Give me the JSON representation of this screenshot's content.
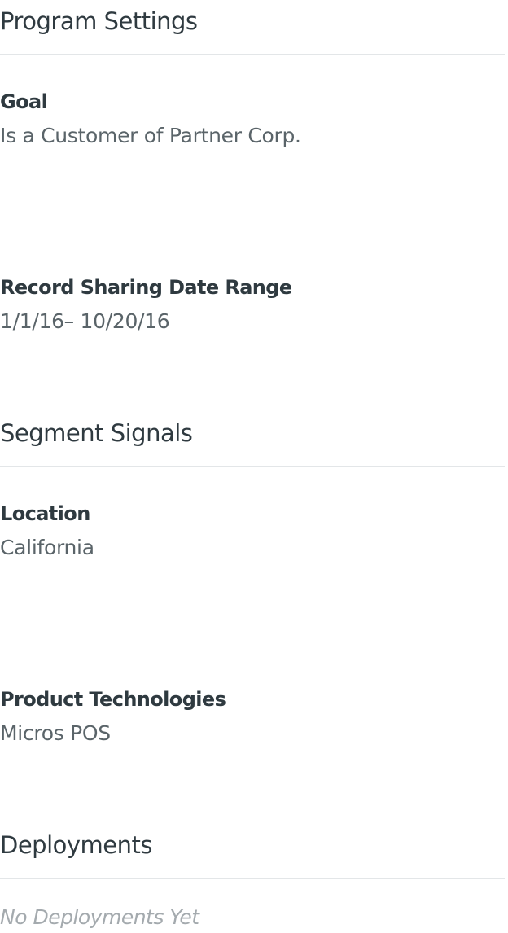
{
  "program_settings": {
    "title": "Program Settings",
    "fields": [
      {
        "label": "Goal",
        "value": "Is a Customer of Partner Corp."
      },
      {
        "label": "Record Sharing Date Range",
        "value": "1/1/16– 10/20/16"
      }
    ]
  },
  "segment_signals": {
    "title": "Segment Signals",
    "fields": [
      {
        "label": "Location",
        "value": "California"
      },
      {
        "label": "Product Technologies",
        "value": "Micros POS"
      }
    ]
  },
  "deployments": {
    "title": "Deployments",
    "empty_text": "No Deployments Yet"
  },
  "colors": {
    "heading": "#2f3a40",
    "value": "#5a6469",
    "muted": "#a4aaae",
    "divider": "#e3e6e8"
  }
}
